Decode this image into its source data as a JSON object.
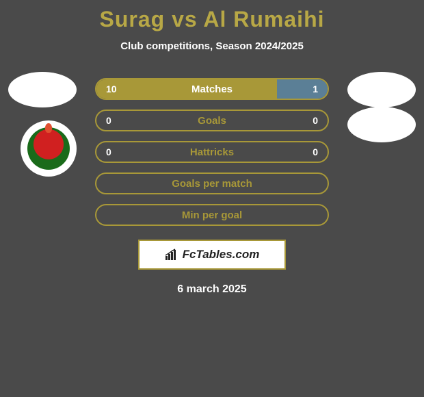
{
  "title": "Surag vs Al Rumaihi",
  "subtitle": "Club competitions, Season 2024/2025",
  "date": "6 march 2025",
  "brand": "FcTables.com",
  "colors": {
    "background": "#4a4a4a",
    "accent": "#b8a846",
    "olive_fill": "#a89838",
    "olive_dark": "#8a7c2e",
    "blue_accent": "#5b7f96",
    "text": "#ffffff",
    "badge_bg": "#ffffff"
  },
  "avatars": {
    "left": {
      "shape": "ellipse",
      "color": "#ffffff"
    },
    "right_top": {
      "shape": "ellipse",
      "color": "#ffffff"
    },
    "right_bottom": {
      "shape": "ellipse",
      "color": "#ffffff"
    }
  },
  "club_badge": {
    "outer_color": "#ffffff",
    "inner_colors": [
      "#d02020",
      "#1a6b1a"
    ]
  },
  "bars": [
    {
      "label": "Matches",
      "left_value": "10",
      "right_value": "1",
      "left_pct": 78,
      "right_pct": 22,
      "left_color": "#a89838",
      "right_color": "#5b7f96",
      "border_color": "#a89838",
      "empty": false
    },
    {
      "label": "Goals",
      "left_value": "0",
      "right_value": "0",
      "left_pct": 0,
      "right_pct": 0,
      "left_color": "#a89838",
      "right_color": "#5b7f96",
      "border_color": "#a89838",
      "empty": true
    },
    {
      "label": "Hattricks",
      "left_value": "0",
      "right_value": "0",
      "left_pct": 0,
      "right_pct": 0,
      "left_color": "#a89838",
      "right_color": "#5b7f96",
      "border_color": "#a89838",
      "empty": true
    },
    {
      "label": "Goals per match",
      "left_value": "",
      "right_value": "",
      "left_pct": 0,
      "right_pct": 0,
      "left_color": "#a89838",
      "right_color": "#5b7f96",
      "border_color": "#a89838",
      "empty": true
    },
    {
      "label": "Min per goal",
      "left_value": "",
      "right_value": "",
      "left_pct": 0,
      "right_pct": 0,
      "left_color": "#a89838",
      "right_color": "#5b7f96",
      "border_color": "#a89838",
      "empty": true
    }
  ],
  "brand_icon_color": "#222222"
}
